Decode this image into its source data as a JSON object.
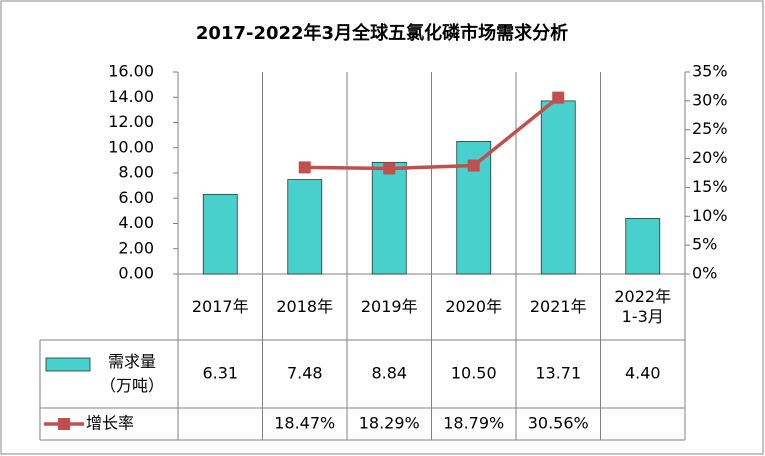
{
  "chart_data": {
    "type": "bar",
    "title": "2017-2022年3月全球五氯化磷市场需求分析",
    "categories": [
      "2017年",
      "2018年",
      "2019年",
      "2020年",
      "2021年",
      "2022年\n1-3月"
    ],
    "series": [
      {
        "name": "需求量\n（万吨）",
        "color": "#48d1cc",
        "type": "bar",
        "values": [
          6.31,
          7.48,
          8.84,
          10.5,
          13.71,
          4.4
        ],
        "value_labels": [
          "6.31",
          "7.48",
          "8.84",
          "10.50",
          "13.71",
          "4.40"
        ]
      },
      {
        "name": "增长率",
        "color": "#c0504d",
        "type": "line",
        "axis": "y2",
        "values": [
          null,
          18.47,
          18.29,
          18.79,
          30.56,
          null
        ],
        "value_labels": [
          null,
          "18.47%",
          "18.29%",
          "18.79%",
          "30.56%",
          null
        ]
      }
    ],
    "ylim": [
      0,
      16
    ],
    "yticks": [
      {
        "value": 0,
        "label": "0.00"
      },
      {
        "value": 2,
        "label": "2.00"
      },
      {
        "value": 4,
        "label": "4.00"
      },
      {
        "value": 6,
        "label": "6.00"
      },
      {
        "value": 8,
        "label": "8.00"
      },
      {
        "value": 10,
        "label": "10.00"
      },
      {
        "value": 12,
        "label": "12.00"
      },
      {
        "value": 14,
        "label": "14.00"
      },
      {
        "value": 16,
        "label": "16.00"
      }
    ],
    "y2lim": [
      0,
      35
    ],
    "y2ticks": [
      {
        "value": 0,
        "label": "0%"
      },
      {
        "value": 5,
        "label": "5%"
      },
      {
        "value": 10,
        "label": "10%"
      },
      {
        "value": 15,
        "label": "15%"
      },
      {
        "value": 20,
        "label": "20%"
      },
      {
        "value": 25,
        "label": "25%"
      },
      {
        "value": 30,
        "label": "30%"
      },
      {
        "value": 35,
        "label": "35%"
      }
    ]
  }
}
